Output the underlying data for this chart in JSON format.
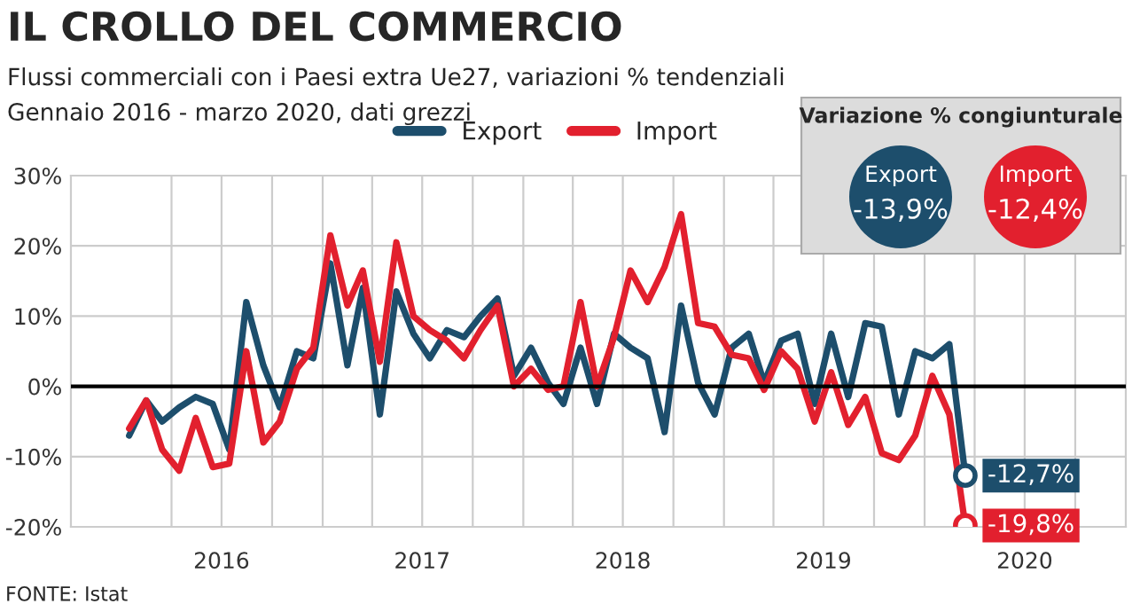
{
  "chart_data": {
    "type": "line",
    "title": "IL CROLLO DEL COMMERCIO",
    "subtitle": "Flussi commerciali con i Paesi extra Ue27, variazioni % tendenziali\nGennaio 2016 - marzo 2020, dati grezzi",
    "x": [
      "2016-01-15",
      "2016-02-15",
      "2016-03-15",
      "2016-04-15",
      "2016-05-15",
      "2016-06-15",
      "2016-07-15",
      "2016-08-15",
      "2016-09-15",
      "2016-10-15",
      "2016-11-15",
      "2016-12-15",
      "2017-01-15",
      "2017-02-15",
      "2017-03-15",
      "2017-04-15",
      "2017-05-15",
      "2017-06-15",
      "2017-07-15",
      "2017-08-15",
      "2017-09-15",
      "2017-10-15",
      "2017-11-15",
      "2017-12-15",
      "2018-01-15",
      "2018-02-15",
      "2018-03-15",
      "2018-04-15",
      "2018-05-15",
      "2018-06-15",
      "2018-07-15",
      "2018-08-15",
      "2018-09-15",
      "2018-10-15",
      "2018-11-15",
      "2018-12-15",
      "2019-01-15",
      "2019-02-15",
      "2019-03-15",
      "2019-04-15",
      "2019-05-15",
      "2019-06-15",
      "2019-07-15",
      "2019-08-15",
      "2019-09-15",
      "2019-10-15",
      "2019-11-15",
      "2019-12-15",
      "2020-01-15",
      "2020-02-15",
      "2020-03-15"
    ],
    "series": [
      {
        "name": "Export",
        "color": "#1d4e6c",
        "values": [
          -7,
          -2,
          -5,
          -3,
          -1.5,
          -2.5,
          -9,
          12,
          3,
          -3,
          5,
          4,
          17.5,
          3,
          14,
          -4,
          13.5,
          7.5,
          4,
          8,
          7,
          10,
          12.5,
          1.5,
          5.5,
          0.5,
          -2.5,
          5.5,
          -2.5,
          7.5,
          5.5,
          4,
          -6.5,
          11.5,
          0.5,
          -4,
          5.5,
          7.5,
          0.5,
          6.5,
          7.5,
          -2.5,
          7.5,
          -1.5,
          9,
          8.5,
          -4,
          5,
          4,
          6,
          -12.7
        ],
        "value_labels": [
          null,
          null,
          null,
          null,
          null,
          null,
          null,
          null,
          null,
          null,
          null,
          null,
          null,
          null,
          null,
          null,
          null,
          null,
          null,
          null,
          null,
          null,
          null,
          null,
          null,
          null,
          null,
          null,
          null,
          null,
          null,
          null,
          null,
          null,
          null,
          null,
          null,
          null,
          null,
          null,
          null,
          null,
          null,
          null,
          null,
          null,
          null,
          null,
          null,
          null,
          "-12,7%"
        ]
      },
      {
        "name": "Import",
        "color": "#e2202e",
        "values": [
          -6,
          -2,
          -9,
          -12,
          -4.5,
          -11.5,
          -11,
          5,
          -8,
          -5,
          2.5,
          5.5,
          21.5,
          11.5,
          16.5,
          3.5,
          20.5,
          10,
          8,
          6.5,
          4,
          8,
          11.5,
          0,
          2.5,
          -0.5,
          0,
          12,
          0,
          7,
          16.5,
          12,
          17,
          24.5,
          9,
          8.5,
          4.5,
          4,
          -0.5,
          5,
          2.5,
          -5,
          2,
          -5.5,
          -1.5,
          -9.5,
          -10.5,
          -7,
          1.5,
          -4,
          -19.8
        ],
        "value_labels": [
          null,
          null,
          null,
          null,
          null,
          null,
          null,
          null,
          null,
          null,
          null,
          null,
          null,
          null,
          null,
          null,
          null,
          null,
          null,
          null,
          null,
          null,
          null,
          null,
          null,
          null,
          null,
          null,
          null,
          null,
          null,
          null,
          null,
          null,
          null,
          null,
          null,
          null,
          null,
          null,
          null,
          null,
          null,
          null,
          null,
          null,
          null,
          null,
          null,
          null,
          "-19,8%"
        ]
      }
    ],
    "xlim": [
      "2015-10-01",
      "2021-01-01"
    ],
    "xticks": [
      {
        "value": "2016-04-01",
        "label": null
      },
      {
        "value": "2016-07-01",
        "label": "2016"
      },
      {
        "value": "2016-10-01",
        "label": null
      },
      {
        "value": "2017-01-01",
        "label": null
      },
      {
        "value": "2017-04-01",
        "label": null
      },
      {
        "value": "2017-07-01",
        "label": "2017"
      },
      {
        "value": "2017-10-01",
        "label": null
      },
      {
        "value": "2018-01-01",
        "label": null
      },
      {
        "value": "2018-04-01",
        "label": null
      },
      {
        "value": "2018-07-01",
        "label": "2018"
      },
      {
        "value": "2018-10-01",
        "label": null
      },
      {
        "value": "2019-01-01",
        "label": null
      },
      {
        "value": "2019-04-01",
        "label": null
      },
      {
        "value": "2019-07-01",
        "label": "2019"
      },
      {
        "value": "2019-10-01",
        "label": null
      },
      {
        "value": "2020-01-01",
        "label": null
      },
      {
        "value": "2020-04-01",
        "label": null
      },
      {
        "value": "2020-07-01",
        "label": "2020"
      },
      {
        "value": "2020-10-01",
        "label": null
      }
    ],
    "ylim": [
      -20,
      30
    ],
    "yticks": [
      {
        "value": -20,
        "label": "-20%"
      },
      {
        "value": -10,
        "label": "-10%"
      },
      {
        "value": 0,
        "label": "0%"
      },
      {
        "value": 10,
        "label": "10%"
      },
      {
        "value": 20,
        "label": "20%"
      },
      {
        "value": 30,
        "label": "30%"
      }
    ],
    "ref_lines": [
      {
        "axis": "y",
        "value": 0,
        "color": "#000000"
      }
    ],
    "grid": true,
    "legend": "top",
    "annotations": [
      "Variazione % congiunturale",
      "Export",
      "-13,9%",
      "Import",
      "-12,4%",
      "FONTE: Istat"
    ]
  }
}
